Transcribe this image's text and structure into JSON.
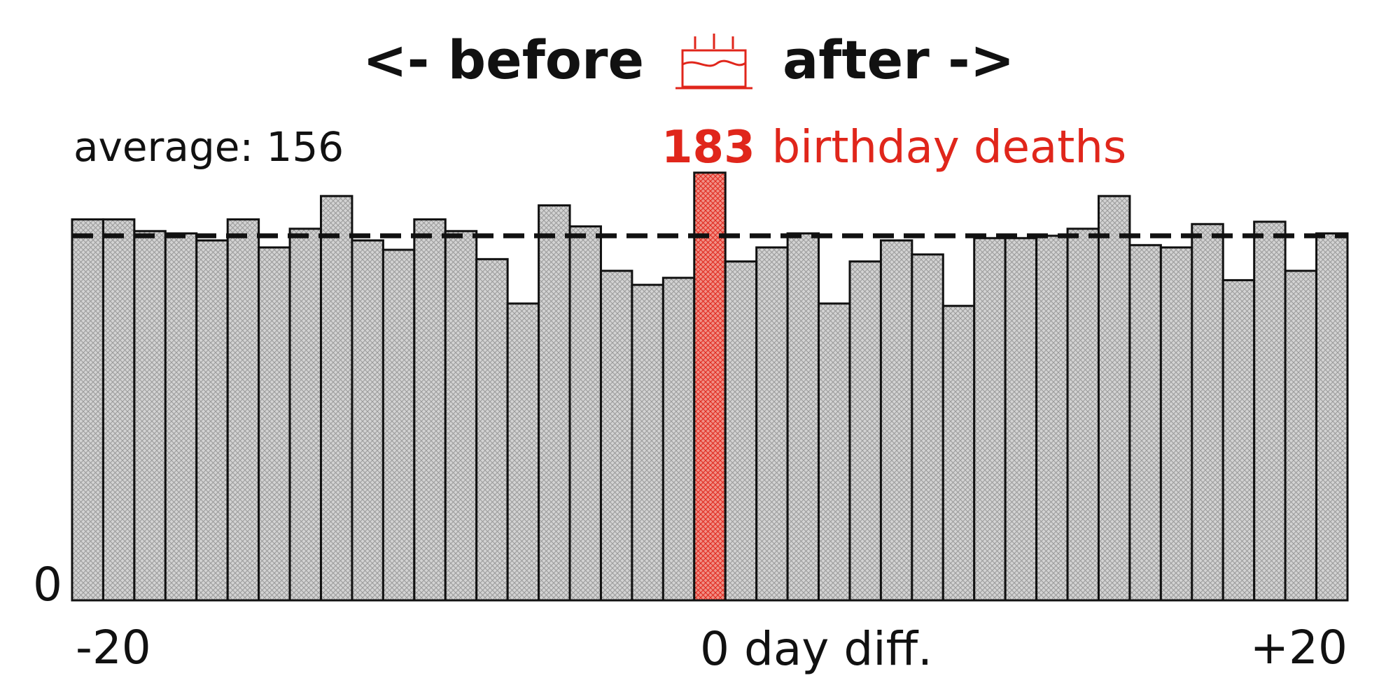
{
  "colors": {
    "bar_fill": "#d3d3d3",
    "bar_hatch": "#9a9a9a",
    "bar_stroke": "#111111",
    "highlight_fill": "#f08f85",
    "highlight_hatch": "#e0261b",
    "text": "#111111",
    "accent": "#e0261b"
  },
  "chart_data": {
    "type": "bar",
    "title_left": "<- before",
    "title_icon": "birthday-cake-icon",
    "title_right": "after ->",
    "xlabel": "0 day diff.",
    "x": [
      -20,
      -19,
      -18,
      -17,
      -16,
      -15,
      -14,
      -13,
      -12,
      -11,
      -10,
      -9,
      -8,
      -7,
      -6,
      -5,
      -4,
      -3,
      -2,
      -1,
      0,
      1,
      2,
      3,
      4,
      5,
      6,
      7,
      8,
      9,
      10,
      11,
      12,
      13,
      14,
      15,
      16,
      17,
      18,
      19,
      20
    ],
    "values": [
      163,
      163,
      158,
      157,
      154,
      163,
      151,
      159,
      173,
      154,
      150,
      163,
      158,
      146,
      127,
      169,
      160,
      141,
      135,
      138,
      183,
      145,
      151,
      157,
      127,
      145,
      154,
      148,
      126,
      155,
      155,
      156,
      159,
      173,
      152,
      151,
      161,
      137,
      162,
      141,
      157
    ],
    "highlight_index": 20,
    "highlight_label_value": "183",
    "highlight_label_text": "birthday deaths",
    "average_label": "average: 156",
    "average_value": 156,
    "ylim": [
      0,
      200
    ],
    "ytick_label": "0",
    "xtick_left": "-20",
    "xtick_right": "+20",
    "grid": false,
    "legend": "none"
  }
}
